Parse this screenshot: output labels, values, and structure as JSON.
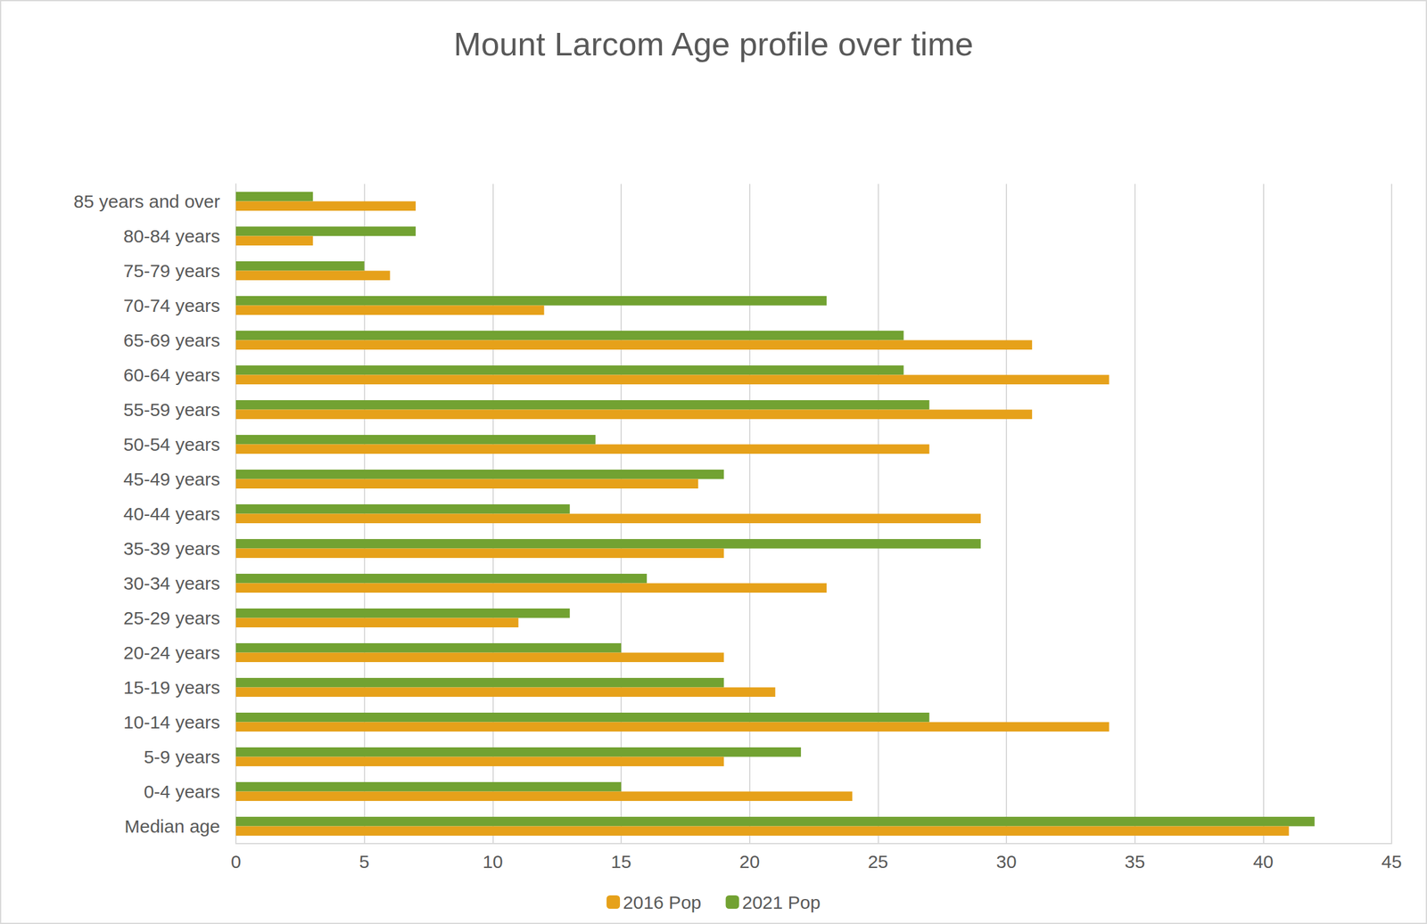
{
  "chart_data": {
    "type": "bar",
    "orientation": "horizontal",
    "title": "Mount Larcom Age profile over time",
    "categories": [
      "Median age",
      "0-4 years",
      "5-9 years",
      "10-14 years",
      "15-19 years",
      "20-24 years",
      "25-29 years",
      "30-34 years",
      "35-39 years",
      "40-44 years",
      "45-49 years",
      "50-54 years",
      "55-59 years",
      "60-64 years",
      "65-69 years",
      "70-74 years",
      "75-79 years",
      "80-84 years",
      "85 years and over"
    ],
    "series": [
      {
        "name": "2016 Pop",
        "color": "#e6a11a",
        "values": [
          41,
          24,
          19,
          34,
          21,
          19,
          11,
          23,
          19,
          29,
          18,
          27,
          31,
          34,
          31,
          12,
          6,
          3,
          7
        ]
      },
      {
        "name": "2021 Pop",
        "color": "#72a232",
        "values": [
          42,
          15,
          22,
          27,
          19,
          15,
          13,
          16,
          29,
          13,
          19,
          14,
          27,
          26,
          26,
          23,
          5,
          7,
          3
        ]
      }
    ],
    "xlim": [
      0,
      45
    ],
    "xticks": [
      0,
      5,
      10,
      15,
      20,
      25,
      30,
      35,
      40,
      45
    ],
    "grid": true,
    "legend": "bottom"
  }
}
